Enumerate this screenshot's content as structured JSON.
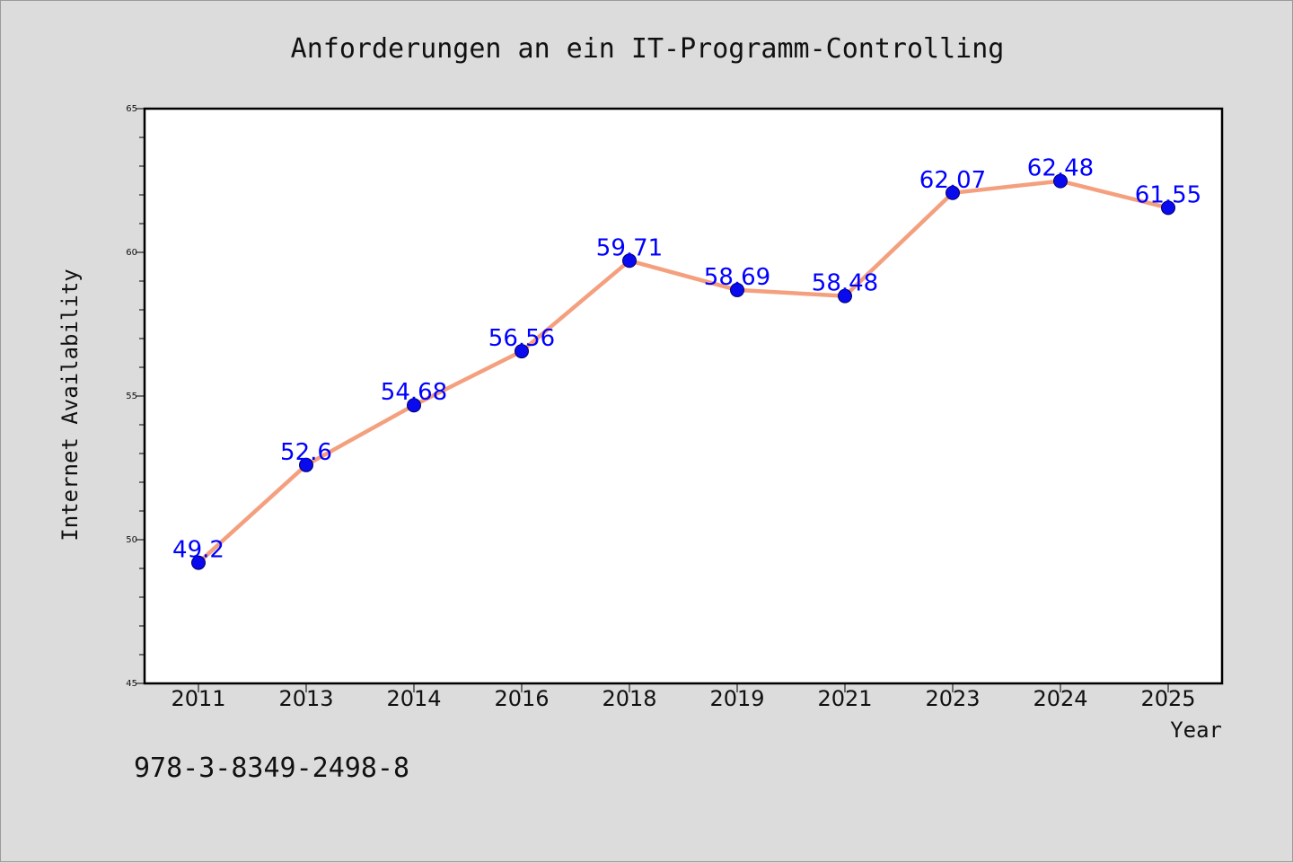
{
  "chart_data": {
    "type": "line",
    "title": "Anforderungen an ein IT-Programm-Controlling",
    "xlabel": "Year",
    "ylabel": "Internet Availability",
    "categories": [
      "2011",
      "2013",
      "2014",
      "2016",
      "2018",
      "2019",
      "2021",
      "2023",
      "2024",
      "2025"
    ],
    "series": [
      {
        "values": [
          49.2,
          52.6,
          54.68,
          56.56,
          59.71,
          58.69,
          58.48,
          62.07,
          62.48,
          61.55
        ],
        "labels": [
          "49.2",
          "52.6",
          "54.68",
          "56.56",
          "59.71",
          "58.69",
          "58.48",
          "62.07",
          "62.48",
          "61.55"
        ]
      }
    ],
    "ylim": [
      45,
      65
    ],
    "yticks": [
      "45",
      "50",
      "55",
      "60",
      "65"
    ],
    "grid": false,
    "colors": {
      "line": "#f4a07e",
      "marker": "#0a0aee",
      "data_label": "#0000ff",
      "plot_background": "#ffffff",
      "page_background": "#dcdcdc"
    }
  },
  "footnote": "978-3-8349-2498-8"
}
